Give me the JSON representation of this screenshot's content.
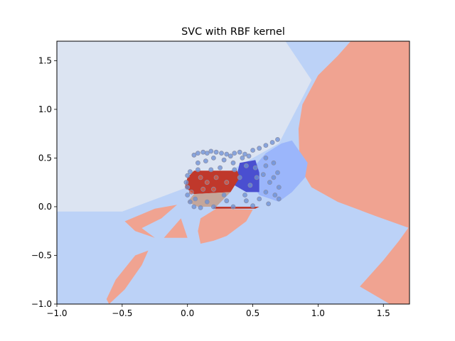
{
  "chart_data": {
    "type": "scatter",
    "title": "SVC with RBF kernel",
    "xlabel": "",
    "ylabel": "",
    "xlim": [
      -1.0,
      1.7
    ],
    "ylim": [
      -1.0,
      1.7
    ],
    "x_ticks": [
      -1.0,
      -0.5,
      0.0,
      0.5,
      1.0,
      1.5
    ],
    "x_tick_labels": [
      "−1.0",
      "−0.5",
      "0.0",
      "0.5",
      "1.0",
      "1.5"
    ],
    "y_ticks": [
      -1.0,
      -0.5,
      0.0,
      0.5,
      1.0,
      1.5
    ],
    "y_tick_labels": [
      "−1.0",
      "−0.5",
      "0.0",
      "0.5",
      "1.0",
      "1.5"
    ],
    "grid": false,
    "colors": {
      "region_pale": "#dce4f2",
      "region_light_blue": "#bcd2f7",
      "region_mid_blue": "#9bb6fb",
      "region_dark_blue": "#4a4fd0",
      "region_salmon": "#f0a391",
      "region_red": "#c0382b",
      "region_tan": "#c4a69a",
      "point_blue": "#6b8fd6",
      "point_red": "#d6604d",
      "point_edge": "#8a8fa8"
    },
    "decision_regions": [
      {
        "class": "pale",
        "points": [
          [
            -1.0,
            1.7
          ],
          [
            0.75,
            1.7
          ],
          [
            0.95,
            1.3
          ],
          [
            0.7,
            0.65
          ],
          [
            0.3,
            0.35
          ],
          [
            -0.1,
            0.15
          ],
          [
            -0.5,
            -0.05
          ],
          [
            -1.0,
            -0.05
          ]
        ]
      },
      {
        "class": "salmon",
        "points": [
          [
            1.25,
            1.7
          ],
          [
            1.7,
            1.7
          ],
          [
            1.7,
            -0.22
          ],
          [
            1.45,
            -0.1
          ],
          [
            1.15,
            0.05
          ],
          [
            0.95,
            0.2
          ],
          [
            0.86,
            0.4
          ],
          [
            0.85,
            0.8
          ],
          [
            0.88,
            1.05
          ],
          [
            1.0,
            1.35
          ],
          [
            1.15,
            1.55
          ]
        ]
      },
      {
        "class": "salmon",
        "points": [
          [
            1.32,
            -0.82
          ],
          [
            1.5,
            -0.55
          ],
          [
            1.62,
            -0.35
          ],
          [
            1.7,
            -0.2
          ],
          [
            1.7,
            -1.0
          ],
          [
            1.55,
            -1.0
          ]
        ]
      },
      {
        "class": "salmon",
        "points": [
          [
            -0.6,
            -1.0
          ],
          [
            -0.48,
            -0.85
          ],
          [
            -0.35,
            -0.6
          ],
          [
            -0.3,
            -0.45
          ],
          [
            -0.4,
            -0.5
          ],
          [
            -0.55,
            -0.75
          ],
          [
            -0.62,
            -0.95
          ]
        ]
      },
      {
        "class": "salmon",
        "points": [
          [
            -0.48,
            -0.15
          ],
          [
            -0.25,
            -0.02
          ],
          [
            -0.08,
            0.02
          ],
          [
            -0.2,
            -0.12
          ],
          [
            -0.35,
            -0.22
          ],
          [
            -0.25,
            -0.32
          ],
          [
            -0.4,
            -0.25
          ]
        ]
      },
      {
        "class": "salmon",
        "points": [
          [
            -0.18,
            -0.32
          ],
          [
            -0.05,
            -0.12
          ],
          [
            0.0,
            -0.32
          ]
        ]
      },
      {
        "class": "salmon",
        "points": [
          [
            0.1,
            -0.12
          ],
          [
            0.22,
            -0.02
          ],
          [
            0.5,
            -0.03
          ],
          [
            0.45,
            -0.15
          ],
          [
            0.3,
            -0.3
          ],
          [
            0.2,
            -0.35
          ],
          [
            0.1,
            -0.38
          ],
          [
            0.08,
            -0.25
          ]
        ]
      },
      {
        "class": "mid_blue",
        "points": [
          [
            0.45,
            0.32
          ],
          [
            0.6,
            0.55
          ],
          [
            0.72,
            0.65
          ],
          [
            0.8,
            0.68
          ],
          [
            0.92,
            0.45
          ],
          [
            0.9,
            0.3
          ],
          [
            0.8,
            0.15
          ],
          [
            0.7,
            0.05
          ],
          [
            0.55,
            0.12
          ]
        ]
      },
      {
        "class": "dark_blue",
        "points": [
          [
            0.4,
            0.45
          ],
          [
            0.52,
            0.48
          ],
          [
            0.55,
            0.35
          ],
          [
            0.55,
            0.15
          ],
          [
            0.45,
            0.15
          ],
          [
            0.36,
            0.22
          ]
        ]
      },
      {
        "class": "red",
        "points": [
          [
            0.05,
            0.37
          ],
          [
            0.38,
            0.37
          ],
          [
            0.4,
            0.3
          ],
          [
            0.33,
            0.15
          ],
          [
            0.05,
            0.13
          ],
          [
            -0.02,
            0.2
          ],
          [
            0.0,
            0.3
          ]
        ]
      },
      {
        "class": "red",
        "points": [
          [
            0.2,
            -0.02
          ],
          [
            0.2,
            0.0
          ],
          [
            0.55,
            0.0
          ],
          [
            0.52,
            -0.02
          ]
        ]
      },
      {
        "class": "tan",
        "points": [
          [
            0.05,
            0.13
          ],
          [
            0.33,
            0.15
          ],
          [
            0.22,
            0.0
          ],
          [
            0.08,
            0.0
          ],
          [
            0.0,
            0.05
          ]
        ]
      }
    ],
    "series": [
      {
        "label_on_chart": "",
        "points": [
          [
            0.05,
            0.53
          ],
          [
            0.08,
            0.55
          ],
          [
            0.12,
            0.56
          ],
          [
            0.15,
            0.55
          ],
          [
            0.18,
            0.57
          ],
          [
            0.22,
            0.56
          ],
          [
            0.26,
            0.55
          ],
          [
            0.3,
            0.54
          ],
          [
            0.33,
            0.52
          ],
          [
            0.36,
            0.55
          ],
          [
            0.4,
            0.56
          ],
          [
            0.44,
            0.54
          ],
          [
            0.47,
            0.52
          ],
          [
            0.5,
            0.58
          ],
          [
            0.55,
            0.6
          ],
          [
            0.6,
            0.63
          ],
          [
            0.65,
            0.66
          ],
          [
            0.69,
            0.69
          ],
          [
            0.02,
            0.36
          ],
          [
            0.0,
            0.32
          ],
          [
            -0.01,
            0.25
          ],
          [
            0.0,
            0.2
          ],
          [
            0.0,
            0.12
          ],
          [
            0.02,
            0.05
          ],
          [
            0.05,
            0.0
          ],
          [
            0.1,
            -0.01
          ],
          [
            0.2,
            0.0
          ],
          [
            0.35,
            0.0
          ],
          [
            0.5,
            0.01
          ],
          [
            0.62,
            0.03
          ],
          [
            0.7,
            0.08
          ],
          [
            0.7,
            0.2
          ],
          [
            0.69,
            0.35
          ],
          [
            0.66,
            0.45
          ],
          [
            0.6,
            0.5
          ],
          [
            0.08,
            0.45
          ],
          [
            0.14,
            0.47
          ],
          [
            0.2,
            0.5
          ],
          [
            0.28,
            0.48
          ],
          [
            0.35,
            0.45
          ],
          [
            0.45,
            0.42
          ],
          [
            0.52,
            0.4
          ],
          [
            0.58,
            0.33
          ],
          [
            0.63,
            0.25
          ],
          [
            0.6,
            0.15
          ],
          [
            0.55,
            0.08
          ],
          [
            0.45,
            0.06
          ],
          [
            0.3,
            0.06
          ],
          [
            0.15,
            0.05
          ],
          [
            0.06,
            0.08
          ],
          [
            0.1,
            0.3
          ],
          [
            0.15,
            0.25
          ],
          [
            0.22,
            0.3
          ],
          [
            0.3,
            0.25
          ],
          [
            0.2,
            0.18
          ],
          [
            0.12,
            0.18
          ],
          [
            0.4,
            0.3
          ],
          [
            0.48,
            0.22
          ],
          [
            0.53,
            0.3
          ],
          [
            0.44,
            0.12
          ],
          [
            0.28,
            0.12
          ],
          [
            0.36,
            0.38
          ],
          [
            0.25,
            0.4
          ],
          [
            0.18,
            0.38
          ],
          [
            0.6,
            0.42
          ],
          [
            0.66,
            0.3
          ],
          [
            0.67,
            0.12
          ],
          [
            0.03,
            0.15
          ],
          [
            0.08,
            0.38
          ],
          [
            0.42,
            0.5
          ]
        ]
      }
    ]
  }
}
